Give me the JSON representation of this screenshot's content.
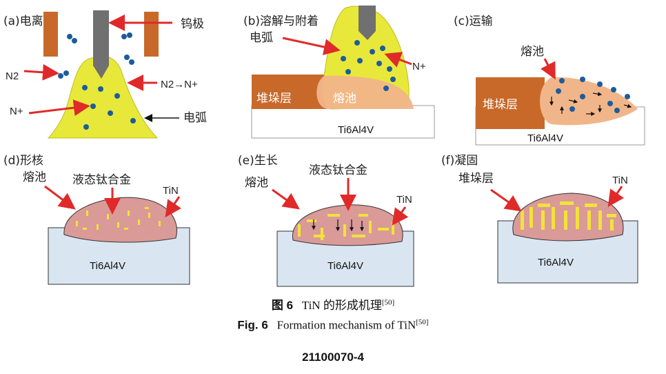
{
  "colors": {
    "arc": "#e8e83a",
    "electrode": "#707070",
    "block": "#c8692a",
    "pool": "#f1b58a",
    "liquid": "#d99a98",
    "substrate": "#d9e6f2",
    "tin": "#f2e23a",
    "arrow": "#e02a2a",
    "ion": "#1d5c9c"
  },
  "panels": {
    "a": {
      "title": "(a)电离",
      "tungsten": "钨极",
      "n2": "N2",
      "n2_to_n": "N2→N+",
      "n_plus": "N+",
      "arc": "电弧"
    },
    "b": {
      "title": "(b)溶解与附着",
      "arc": "电弧",
      "n_plus": "N+",
      "deposit": "堆垛层",
      "pool": "熔池",
      "substrate": "Ti6Al4V"
    },
    "c": {
      "title": "(c)运输",
      "pool": "熔池",
      "deposit": "堆垛层",
      "substrate": "Ti6Al4V"
    },
    "d": {
      "title": "(d)形核",
      "pool": "熔池",
      "liquid": "液态钛合金",
      "tin": "TiN",
      "substrate": "Ti6Al4V"
    },
    "e": {
      "title": "(e)生长",
      "pool": "熔池",
      "liquid": "液态钛合金",
      "tin": "TiN",
      "substrate": "Ti6Al4V"
    },
    "f": {
      "title": "(f)凝固",
      "deposit": "堆垛层",
      "tin": "TiN",
      "substrate": "Ti6Al4V"
    }
  },
  "caption": {
    "cn_label": "图 6",
    "cn_text": "TiN 的形成机理",
    "ref": "[50]",
    "en_label": "Fig. 6",
    "en_text": "Formation mechanism of TiN"
  },
  "page_number": "21100070-4"
}
